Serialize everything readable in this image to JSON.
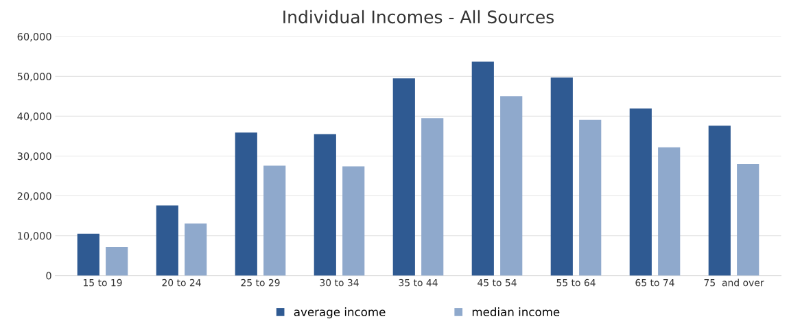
{
  "chart_data": {
    "type": "bar",
    "title": "Individual Incomes - All Sources",
    "categories": [
      "15 to 19",
      "20 to 24",
      "25 to 29",
      "30 to 34",
      "35 to 44",
      "45 to 54",
      "55 to 64",
      "65 to 74",
      "75  and over"
    ],
    "series": [
      {
        "name": "average income",
        "color": "#2f5a92",
        "values": [
          10500,
          17600,
          35900,
          35500,
          49500,
          53700,
          49700,
          41900,
          37600
        ]
      },
      {
        "name": "median income",
        "color": "#8fa9cc",
        "values": [
          7200,
          13100,
          27600,
          27400,
          39500,
          45000,
          39100,
          32200,
          28000
        ]
      }
    ],
    "ylim": [
      0,
      60000
    ],
    "yticks": [
      {
        "value": 0,
        "label": "0"
      },
      {
        "value": 10000,
        "label": "10,000"
      },
      {
        "value": 20000,
        "label": "20,000"
      },
      {
        "value": 30000,
        "label": "30,000"
      },
      {
        "value": 40000,
        "label": "40,000"
      },
      {
        "value": 50000,
        "label": "50,000"
      },
      {
        "value": 60000,
        "label": "60,000"
      }
    ],
    "grid": "y",
    "legend": "bottom"
  }
}
